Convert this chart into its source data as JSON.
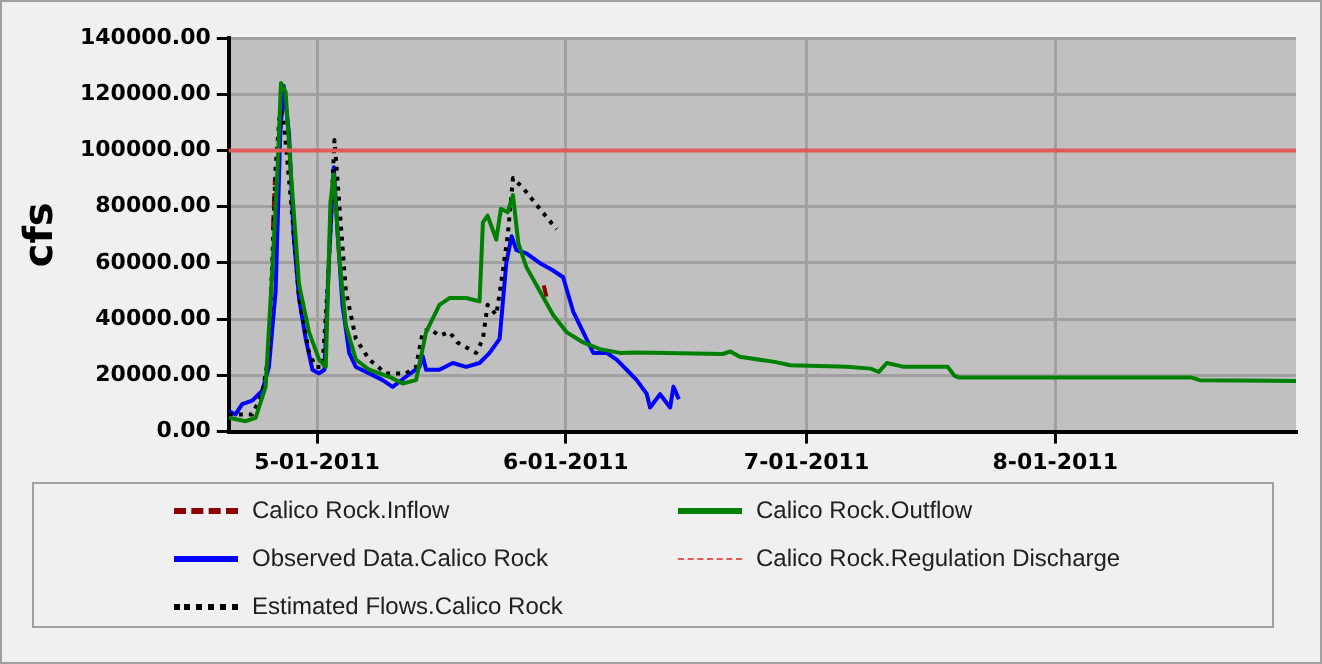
{
  "chart_data": {
    "type": "line",
    "ylabel": "cfs",
    "legend": "bottom",
    "grid": true,
    "xlim": [
      "2011-04-20",
      "2011-08-31"
    ],
    "xticks": [
      {
        "value": "2011-05-01",
        "label": "5-01-2011"
      },
      {
        "value": "2011-06-01",
        "label": "6-01-2011"
      },
      {
        "value": "2011-07-01",
        "label": "7-01-2011"
      },
      {
        "value": "2011-08-01",
        "label": "8-01-2011"
      }
    ],
    "ylim": [
      0,
      140000
    ],
    "yticks": [
      {
        "value": 0,
        "label": "0.00"
      },
      {
        "value": 20000,
        "label": "20000.00"
      },
      {
        "value": 40000,
        "label": "40000.00"
      },
      {
        "value": 60000,
        "label": "60000.00"
      },
      {
        "value": 80000,
        "label": "80000.00"
      },
      {
        "value": 100000,
        "label": "100000.00"
      },
      {
        "value": 120000,
        "label": "120000.00"
      },
      {
        "value": 140000,
        "label": "140000.00"
      }
    ],
    "ref_lines": [
      {
        "axis": "y",
        "value": 100000,
        "label": "Calico Rock.Regulation Discharge",
        "color": "#e05a5a"
      }
    ],
    "series": [
      {
        "name": "Calico Rock.Inflow",
        "color": "#8b0000",
        "line_style": "dashed",
        "x": [
          "2011-04-25T12:00",
          "2011-04-25T18:00",
          "2011-04-26T00:00",
          "2011-05-29T06:00",
          "2011-05-29T14:00"
        ],
        "values": [
          72000,
          90000,
          null,
          52000,
          48000
        ]
      },
      {
        "name": "Observed Data.Calico Rock",
        "color": "#0000ff",
        "line_style": "solid",
        "x": [
          "2011-04-20",
          "2011-04-20T20:00",
          "2011-04-21T16:00",
          "2011-04-22T22:00",
          "2011-04-24T04:00",
          "2011-04-25",
          "2011-04-25T20:00",
          "2011-04-26T10:00",
          "2011-04-26T20:00",
          "2011-04-27T12:00",
          "2011-04-28T02:00",
          "2011-04-28T18:00",
          "2011-04-29T14:00",
          "2011-04-30T10:00",
          "2011-05-01T06:00",
          "2011-05-01T22:00",
          "2011-05-02T12:00",
          "2011-05-03T02:00",
          "2011-05-03T14:00",
          "2011-05-04T04:00",
          "2011-05-05",
          "2011-05-05T20:00",
          "2011-05-07T12:00",
          "2011-05-09T04:00",
          "2011-05-10T10:00",
          "2011-05-12T02:00",
          "2011-05-13T18:00",
          "2011-05-14T04:00",
          "2011-05-14T14:00",
          "2011-05-16T06:00",
          "2011-05-17T22:00",
          "2011-05-19T14:00",
          "2011-05-21T06:00",
          "2011-05-22T12:00",
          "2011-05-23T18:00",
          "2011-05-24T14:00",
          "2011-05-25T06:00",
          "2011-05-25T20:00",
          "2011-05-27T02:00",
          "2011-05-28T18:00",
          "2011-05-30T10:00",
          "2011-05-31T16:00",
          "2011-06-01T22:00",
          "2011-06-03T04:00",
          "2011-06-04T10:00",
          "2011-06-06T02:00",
          "2011-06-07T08:00",
          "2011-06-08T14:00",
          "2011-06-09T20:00",
          "2011-06-11T02:00",
          "2011-06-11T12:00",
          "2011-06-12T18:00",
          "2011-06-14",
          "2011-06-14T10:00",
          "2011-06-15T02:00"
        ],
        "values": [
          7300,
          6100,
          9800,
          11000,
          14600,
          23000,
          50000,
          106000,
          123000,
          106000,
          69500,
          47500,
          33000,
          22000,
          20700,
          22000,
          62000,
          94000,
          69500,
          45000,
          28000,
          23000,
          20700,
          18300,
          15900,
          19500,
          23000,
          26800,
          22000,
          22000,
          24400,
          23000,
          24400,
          28000,
          33000,
          60000,
          69500,
          64600,
          63400,
          60000,
          57300,
          54900,
          42700,
          35400,
          28000,
          28000,
          25600,
          22000,
          18300,
          13400,
          8600,
          13300,
          8600,
          16000,
          11500
        ]
      },
      {
        "name": "Estimated Flows.Calico Rock",
        "color": "#000000",
        "line_style": "dotted",
        "x": [
          "2011-04-20",
          "2011-04-22T22:00",
          "2011-04-24T04:00",
          "2011-04-25",
          "2011-04-25T20:00",
          "2011-04-26T10:00",
          "2011-04-26T22:00",
          "2011-04-27T18:00",
          "2011-04-28T18:00",
          "2011-04-30",
          "2011-04-30T20:00",
          "2011-05-01T16:00",
          "2011-05-02T08:00",
          "2011-05-03T04:00",
          "2011-05-03T18:00",
          "2011-05-04T14:00",
          "2011-05-05T20:00",
          "2011-05-07T12:00",
          "2011-05-09T14:00",
          "2011-05-12T02:00",
          "2011-05-13T08:00",
          "2011-05-14T04:00",
          "2011-05-15",
          "2011-05-16T06:00",
          "2011-05-17T12:00",
          "2011-05-18T12:00",
          "2011-05-20T20:00",
          "2011-05-21T16:00",
          "2011-05-22T06:00",
          "2011-05-23T08:00",
          "2011-05-23T22:00",
          "2011-05-24T18:00",
          "2011-05-25T10:00",
          "2011-05-26T16:00",
          "2011-05-28T18:00",
          "2011-05-30T20:00"
        ],
        "values": [
          6100,
          6100,
          13400,
          28000,
          94000,
          115800,
          108500,
          81700,
          47500,
          28000,
          23000,
          23000,
          52400,
          103700,
          81700,
          50000,
          33000,
          25600,
          20700,
          20700,
          23000,
          35400,
          36600,
          34100,
          35400,
          31700,
          28000,
          33000,
          45100,
          41500,
          52400,
          69500,
          90200,
          86600,
          79300,
          72000
        ]
      },
      {
        "name": "Calico Rock.Outflow",
        "color": "#008000",
        "line_style": "solid",
        "x": [
          "2011-04-20",
          "2011-04-22T02:00",
          "2011-04-23T08:00",
          "2011-04-24T14:00",
          "2011-04-25T10:00",
          "2011-04-26T02:00",
          "2011-04-26T12:00",
          "2011-04-27T02:00",
          "2011-04-27T18:00",
          "2011-04-28T18:00",
          "2011-04-30",
          "2011-05-01T06:00",
          "2011-05-02T02:00",
          "2011-05-02T16:00",
          "2011-05-03T02:00",
          "2011-05-03T18:00",
          "2011-05-04T14:00",
          "2011-05-05T20:00",
          "2011-05-07T12:00",
          "2011-05-10",
          "2011-05-11T16:00",
          "2011-05-13T08:00",
          "2011-05-14T14:00",
          "2011-05-16T06:00",
          "2011-05-17T12:00",
          "2011-05-19T14:00",
          "2011-05-21T06:00",
          "2011-05-21T16:00",
          "2011-05-22T06:00",
          "2011-05-23T08:00",
          "2011-05-23T22:00",
          "2011-05-24T18:00",
          "2011-05-25T10:00",
          "2011-05-26T02:00",
          "2011-05-27T02:00",
          "2011-05-28T18:00",
          "2011-05-30T10:00",
          "2011-06-01T02:00",
          "2011-06-03T04:00",
          "2011-06-05T06:00",
          "2011-06-07T18:00",
          "2011-06-09T20:00",
          "2011-06-20T14:00",
          "2011-06-21T12:00",
          "2011-06-22T16:00",
          "2011-06-27",
          "2011-06-29",
          "2011-07-06",
          "2011-07-09",
          "2011-07-10",
          "2011-07-11",
          "2011-07-13",
          "2011-07-18T14:00",
          "2011-07-19T10:00",
          "2011-07-20",
          "2011-08-18",
          "2011-08-19",
          "2011-08-31"
        ],
        "values": [
          4900,
          3700,
          4900,
          15900,
          57300,
          94000,
          124000,
          120700,
          91500,
          52400,
          35400,
          25600,
          23000,
          81700,
          91500,
          62200,
          37800,
          25600,
          22000,
          19500,
          17100,
          18300,
          35400,
          45100,
          47500,
          47500,
          46300,
          74400,
          76800,
          68300,
          79300,
          78000,
          84100,
          67000,
          58500,
          50000,
          41500,
          35400,
          31700,
          29300,
          28000,
          28100,
          27600,
          28500,
          26600,
          24800,
          23600,
          23100,
          22400,
          21200,
          24400,
          23100,
          23100,
          19900,
          19200,
          19200,
          18300,
          18000
        ]
      }
    ]
  }
}
